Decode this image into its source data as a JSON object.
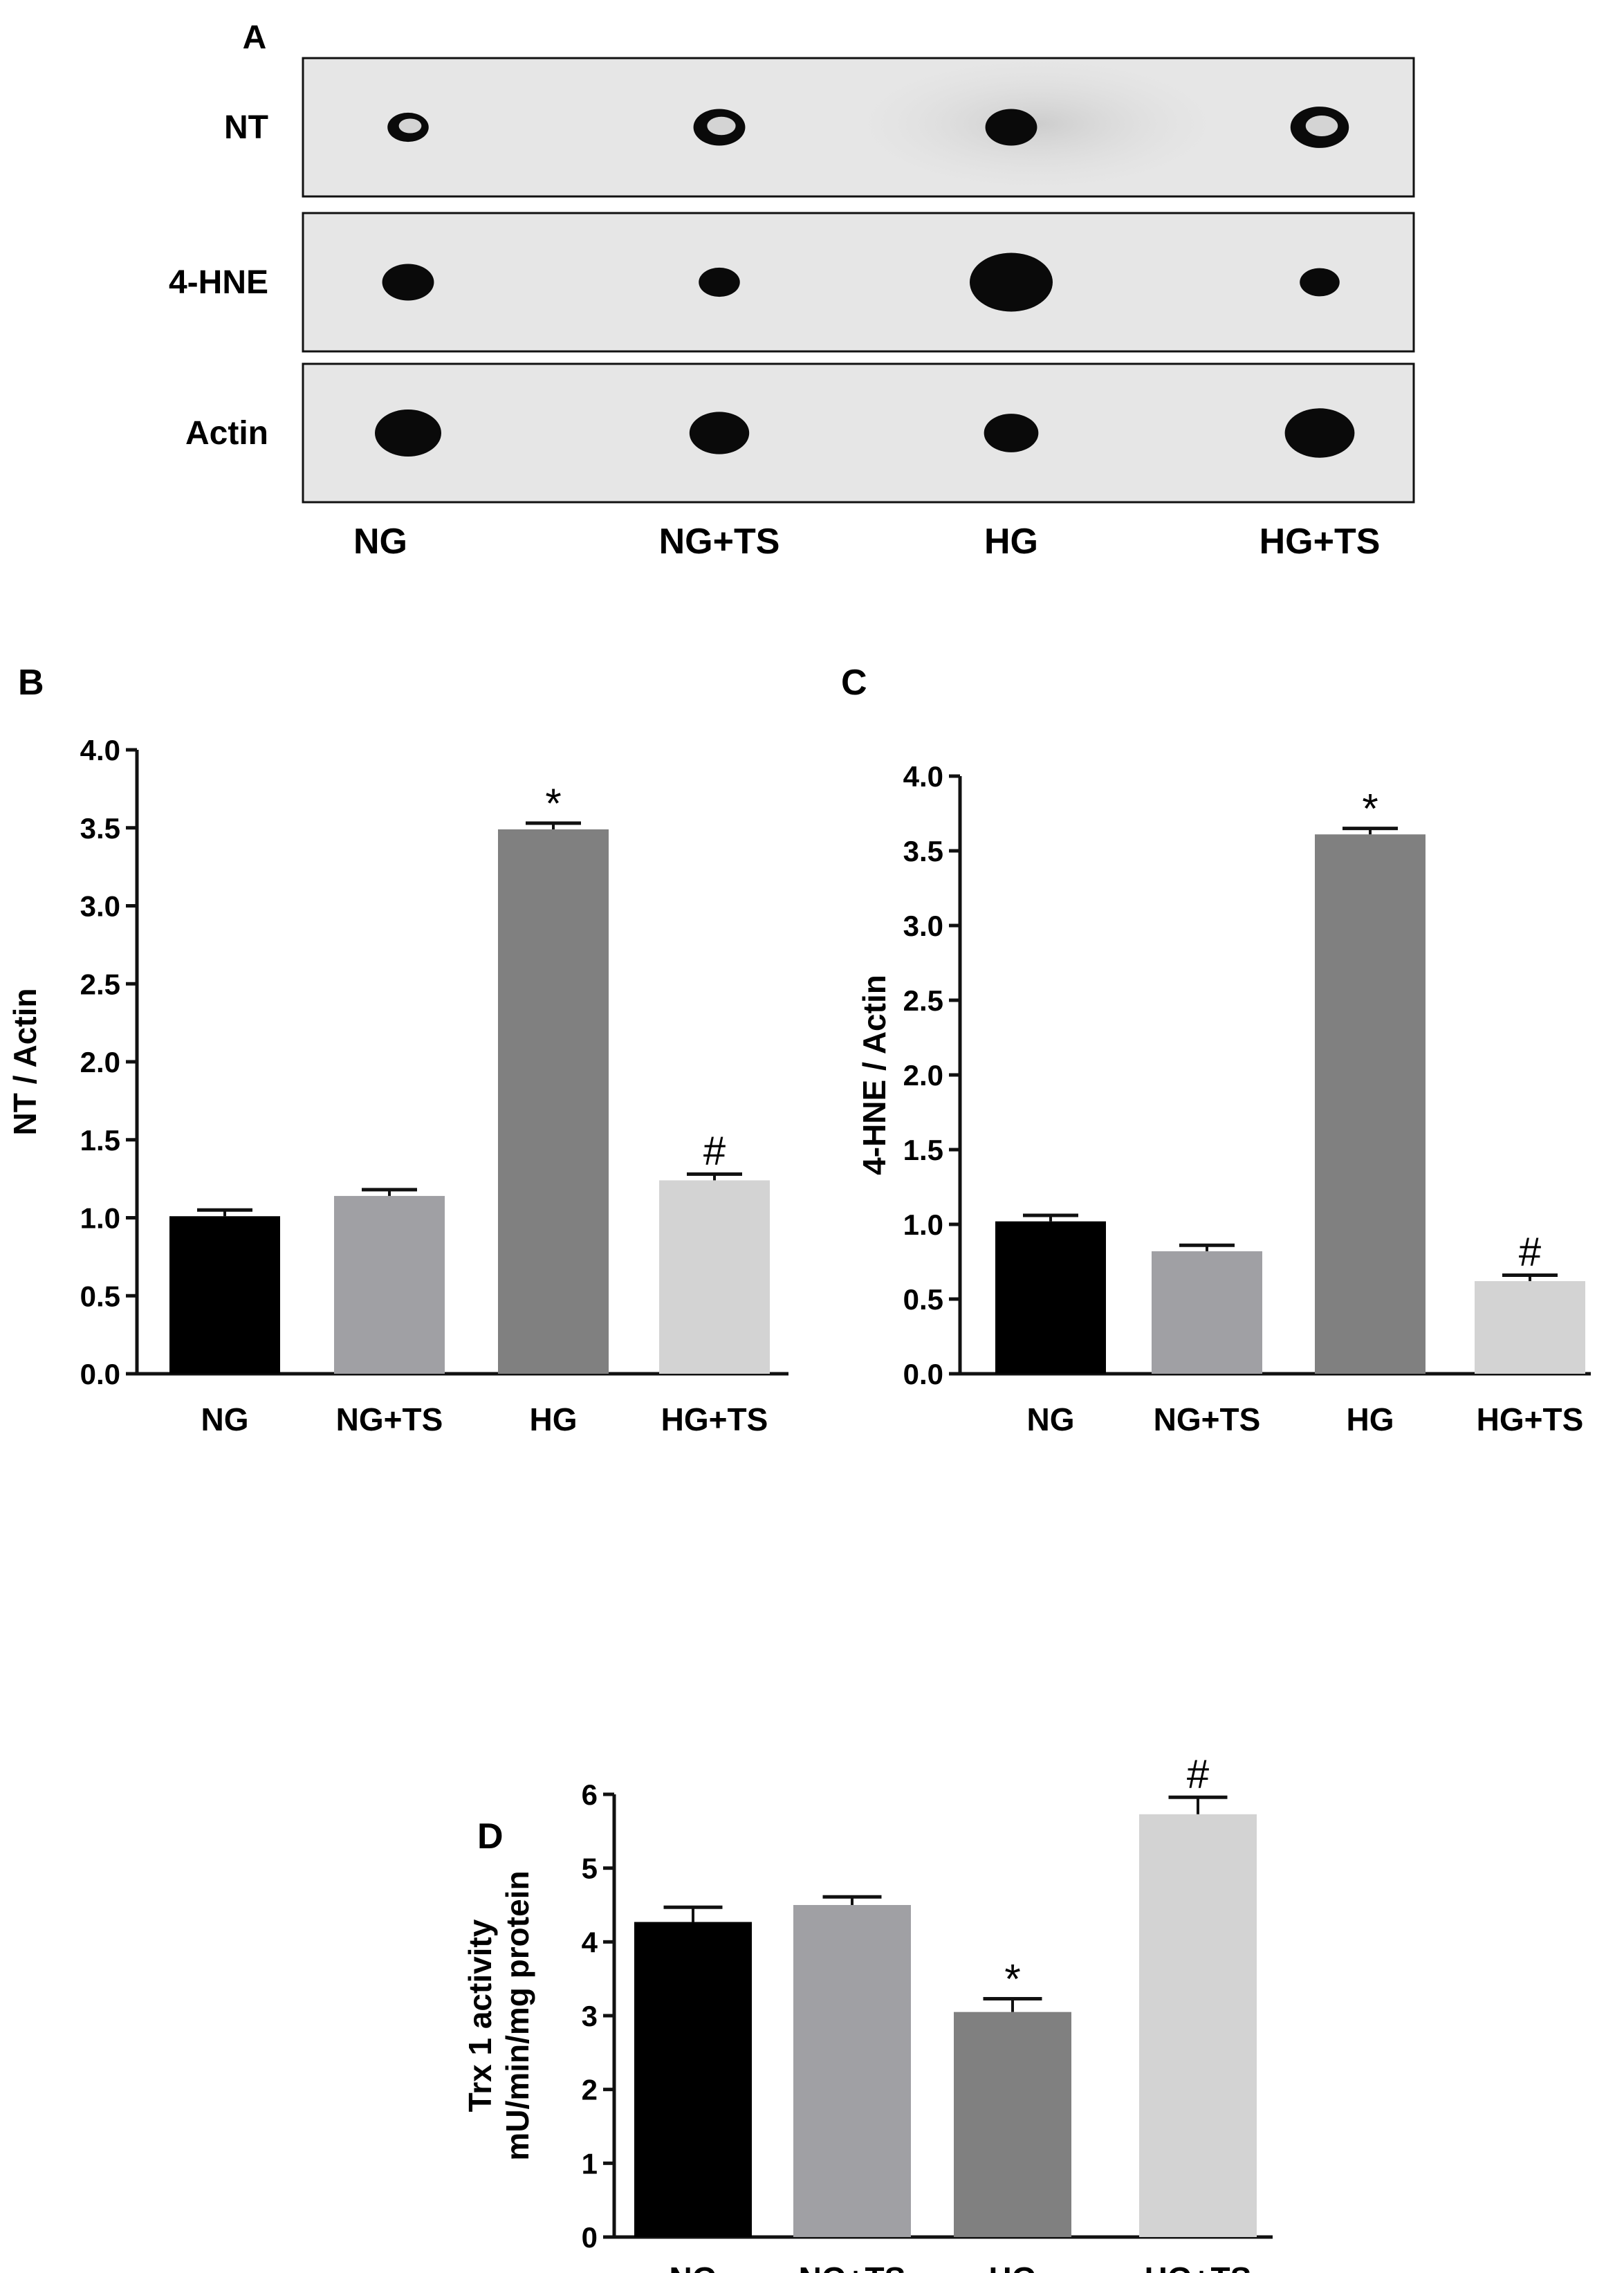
{
  "blot": {
    "panel_label": "A",
    "rows": [
      {
        "name": "NT",
        "spots": [
          {
            "lane": "NG",
            "rel": 0.62,
            "ring": true
          },
          {
            "lane": "NG+TS",
            "rel": 0.78,
            "ring": true
          },
          {
            "lane": "HG",
            "rel": 0.78,
            "ring": false
          },
          {
            "lane": "HG+TS",
            "rel": 0.88,
            "ring": true
          }
        ]
      },
      {
        "name": "4-HNE",
        "spots": [
          {
            "lane": "NG",
            "rel": 0.78,
            "ring": false
          },
          {
            "lane": "NG+TS",
            "rel": 0.62,
            "ring": false
          },
          {
            "lane": "HG",
            "rel": 1.25,
            "ring": false
          },
          {
            "lane": "HG+TS",
            "rel": 0.6,
            "ring": false
          }
        ]
      },
      {
        "name": "Actin",
        "spots": [
          {
            "lane": "NG",
            "rel": 1.0,
            "ring": false
          },
          {
            "lane": "NG+TS",
            "rel": 0.9,
            "ring": false
          },
          {
            "lane": "HG",
            "rel": 0.82,
            "ring": false
          },
          {
            "lane": "HG+TS",
            "rel": 1.05,
            "ring": false
          }
        ]
      }
    ],
    "lane_labels": [
      "NG",
      "NG+TS",
      "HG",
      "HG+TS"
    ]
  },
  "chart_data": [
    {
      "panel_label": "B",
      "type": "bar",
      "categories": [
        "NG",
        "NG+TS",
        "HG",
        "HG+TS"
      ],
      "values": [
        1.01,
        1.14,
        3.49,
        1.24
      ],
      "errors": [
        0.04,
        0.04,
        0.04,
        0.04
      ],
      "annotations": [
        "",
        "",
        "*",
        "#"
      ],
      "ylabel": "NT / Actin",
      "ylim": [
        0,
        4.0
      ],
      "yticks": [
        "0.0",
        "0.5",
        "1.0",
        "1.5",
        "2.0",
        "2.5",
        "3.0",
        "3.5",
        "4.0"
      ],
      "colors": [
        "#000000",
        "#a0a0a4",
        "#808080",
        "#d3d3d3"
      ]
    },
    {
      "panel_label": "C",
      "type": "bar",
      "categories": [
        "NG",
        "NG+TS",
        "HG",
        "HG+TS"
      ],
      "values": [
        1.02,
        0.82,
        3.61,
        0.62
      ],
      "errors": [
        0.04,
        0.04,
        0.04,
        0.04
      ],
      "annotations": [
        "",
        "",
        "*",
        "#"
      ],
      "ylabel": "4-HNE / Actin",
      "ylim": [
        0,
        4.0
      ],
      "yticks": [
        "0.0",
        "0.5",
        "1.0",
        "1.5",
        "2.0",
        "2.5",
        "3.0",
        "3.5",
        "4.0"
      ],
      "colors": [
        "#000000",
        "#a0a0a4",
        "#808080",
        "#d3d3d3"
      ]
    },
    {
      "panel_label": "D",
      "type": "bar",
      "categories": [
        "NG",
        "NG+TS",
        "HG",
        "HG+TS"
      ],
      "values": [
        4.27,
        4.5,
        3.05,
        5.73
      ],
      "errors": [
        0.2,
        0.11,
        0.18,
        0.23
      ],
      "annotations": [
        "",
        "",
        "*",
        "#"
      ],
      "ylabel_lines": [
        "Trx 1 activity",
        "mU/min/mg protein"
      ],
      "ylim": [
        0,
        6
      ],
      "yticks": [
        "0",
        "1",
        "2",
        "3",
        "4",
        "5",
        "6"
      ],
      "colors": [
        "#000000",
        "#a0a0a4",
        "#808080",
        "#d3d3d3"
      ]
    }
  ]
}
